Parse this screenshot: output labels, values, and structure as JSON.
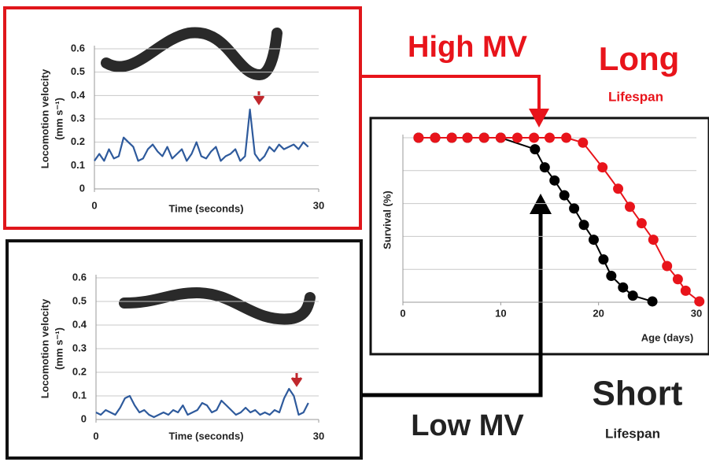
{
  "chart_data": [
    {
      "type": "line",
      "x_label": "Time (seconds)",
      "y_label": "Locomotion velocity",
      "y_unit": "(mm s⁻¹)",
      "xlim": [
        0,
        30
      ],
      "xticks": [
        0,
        30
      ],
      "ylim": [
        0,
        0.6
      ],
      "yticks": [
        0,
        0.1,
        0.2,
        0.3,
        0.4,
        0.5,
        0.6
      ],
      "grid": true,
      "series": [
        {
          "color": "#2e5a9c",
          "x": [
            0,
            0.65,
            1.3,
            1.95,
            2.6,
            3.25,
            3.9,
            4.55,
            5.2,
            5.85,
            6.5,
            7.15,
            7.8,
            8.45,
            9.1,
            9.75,
            10.4,
            11.05,
            11.7,
            12.35,
            13,
            13.65,
            14.3,
            14.95,
            15.6,
            16.25,
            16.9,
            17.55,
            18.2,
            18.85,
            19.5,
            20.15,
            20.8,
            21.45,
            22.1,
            22.75,
            23.4,
            24.05,
            24.7,
            25.35,
            26,
            26.65,
            27.3,
            27.95,
            28.6
          ],
          "values": [
            0.12,
            0.15,
            0.12,
            0.17,
            0.13,
            0.14,
            0.22,
            0.2,
            0.18,
            0.12,
            0.13,
            0.17,
            0.19,
            0.16,
            0.14,
            0.18,
            0.13,
            0.15,
            0.17,
            0.12,
            0.15,
            0.2,
            0.14,
            0.13,
            0.16,
            0.18,
            0.12,
            0.14,
            0.15,
            0.17,
            0.12,
            0.14,
            0.34,
            0.15,
            0.12,
            0.14,
            0.18,
            0.16,
            0.19,
            0.17,
            0.18,
            0.19,
            0.17,
            0.2,
            0.18
          ]
        }
      ]
    },
    {
      "type": "line",
      "x_label": "Time (seconds)",
      "y_label": "Locomotion velocity",
      "y_unit": "(mm s⁻¹)",
      "xlim": [
        0,
        30
      ],
      "xticks": [
        0,
        30
      ],
      "ylim": [
        0,
        0.6
      ],
      "yticks": [
        0,
        0.1,
        0.2,
        0.3,
        0.4,
        0.5,
        0.6
      ],
      "grid": true,
      "series": [
        {
          "color": "#2e5a9c",
          "x": [
            0,
            0.65,
            1.3,
            1.95,
            2.6,
            3.25,
            3.9,
            4.55,
            5.2,
            5.85,
            6.5,
            7.15,
            7.8,
            8.45,
            9.1,
            9.75,
            10.4,
            11.05,
            11.7,
            12.35,
            13,
            13.65,
            14.3,
            14.95,
            15.6,
            16.25,
            16.9,
            17.55,
            18.2,
            18.85,
            19.5,
            20.15,
            20.8,
            21.45,
            22.1,
            22.75,
            23.4,
            24.05,
            24.7,
            25.35,
            26,
            26.65,
            27.3,
            27.95,
            28.6
          ],
          "values": [
            0.03,
            0.02,
            0.04,
            0.03,
            0.02,
            0.05,
            0.09,
            0.1,
            0.06,
            0.03,
            0.04,
            0.02,
            0.01,
            0.02,
            0.03,
            0.02,
            0.04,
            0.03,
            0.06,
            0.02,
            0.03,
            0.04,
            0.07,
            0.06,
            0.03,
            0.04,
            0.08,
            0.06,
            0.04,
            0.02,
            0.03,
            0.05,
            0.03,
            0.04,
            0.02,
            0.03,
            0.02,
            0.04,
            0.03,
            0.09,
            0.13,
            0.1,
            0.02,
            0.03,
            0.07
          ]
        }
      ]
    },
    {
      "type": "line",
      "markers": true,
      "x_label": "Age (days)",
      "y_label": "Survival (%)",
      "xlim": [
        0,
        30
      ],
      "xticks": [
        0,
        10,
        20,
        30
      ],
      "ylim": [
        0,
        100
      ],
      "yticks": [
        0,
        20,
        40,
        60,
        80,
        100
      ],
      "grid": true,
      "series": [
        {
          "color": "#000000",
          "x": [
            1.6,
            3.3,
            5,
            6.6,
            8.3,
            10,
            13.5,
            14.5,
            15.5,
            16.5,
            17.5,
            18.5,
            19.5,
            20.5,
            21.3,
            22.5,
            23.5,
            25.5
          ],
          "values": [
            100,
            100,
            100,
            100,
            100,
            100,
            93,
            82,
            74,
            65,
            57,
            47,
            38,
            26,
            16,
            9,
            4,
            0.5
          ]
        },
        {
          "color": "#e8141b",
          "x": [
            1.6,
            3.3,
            5,
            6.6,
            8.3,
            10,
            11.7,
            13.4,
            15,
            16.7,
            18.4,
            20.4,
            22,
            23.2,
            24.4,
            25.6,
            27,
            28.1,
            28.9,
            30.3
          ],
          "values": [
            100,
            100,
            100,
            100,
            100,
            100,
            100,
            100,
            100,
            100,
            97,
            82,
            69,
            58,
            48,
            38,
            22,
            14,
            7,
            0.5
          ]
        }
      ]
    }
  ],
  "annotations": {
    "high_mv": "High MV",
    "long": "Long",
    "long_sub": "Lifespan",
    "low_mv": "Low MV",
    "short": "Short",
    "short_sub": "Lifespan"
  }
}
